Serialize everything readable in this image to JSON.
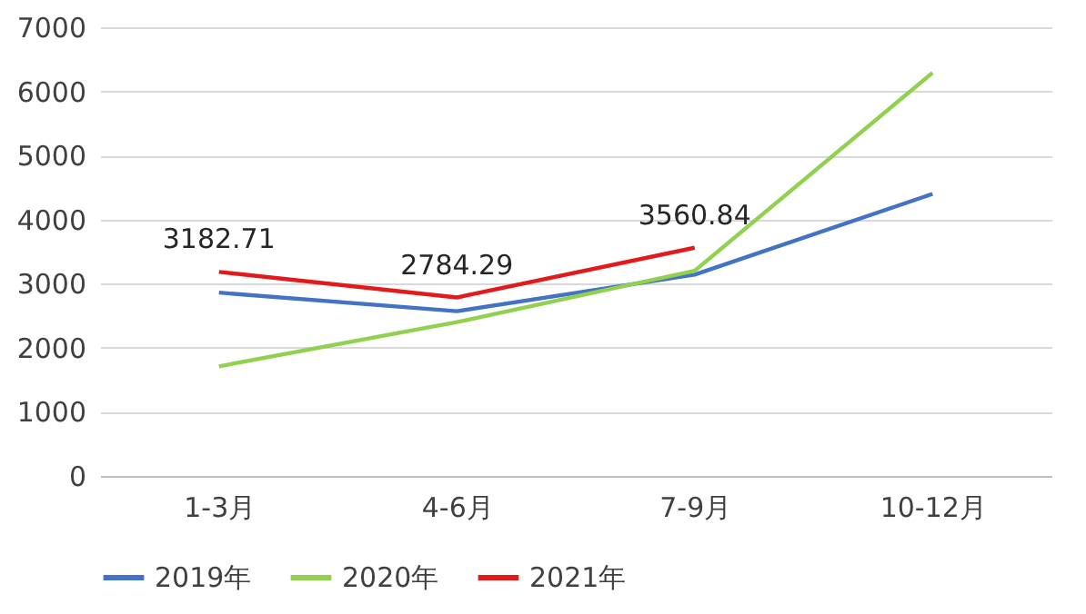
{
  "chart_data": {
    "type": "line",
    "categories": [
      "1-3月",
      "4-6月",
      "7-9月",
      "10-12月"
    ],
    "series": [
      {
        "name": "2019年",
        "color": "#4472c4",
        "values": [
          2860,
          2570,
          3140,
          4400
        ]
      },
      {
        "name": "2020年",
        "color": "#92d050",
        "values": [
          1710,
          2400,
          3200,
          6290
        ]
      },
      {
        "name": "2021年",
        "color": "#e31a1c",
        "values": [
          3182.71,
          2784.29,
          3560.84,
          null
        ],
        "value_labels": [
          "3182.71",
          "2784.29",
          "3560.84",
          null
        ]
      }
    ],
    "ylim": [
      0,
      7000
    ],
    "yticks": [
      0,
      1000,
      2000,
      3000,
      4000,
      5000,
      6000,
      7000
    ],
    "grid": "y",
    "legend": "bottom",
    "marker": "none",
    "line_style": "solid"
  }
}
